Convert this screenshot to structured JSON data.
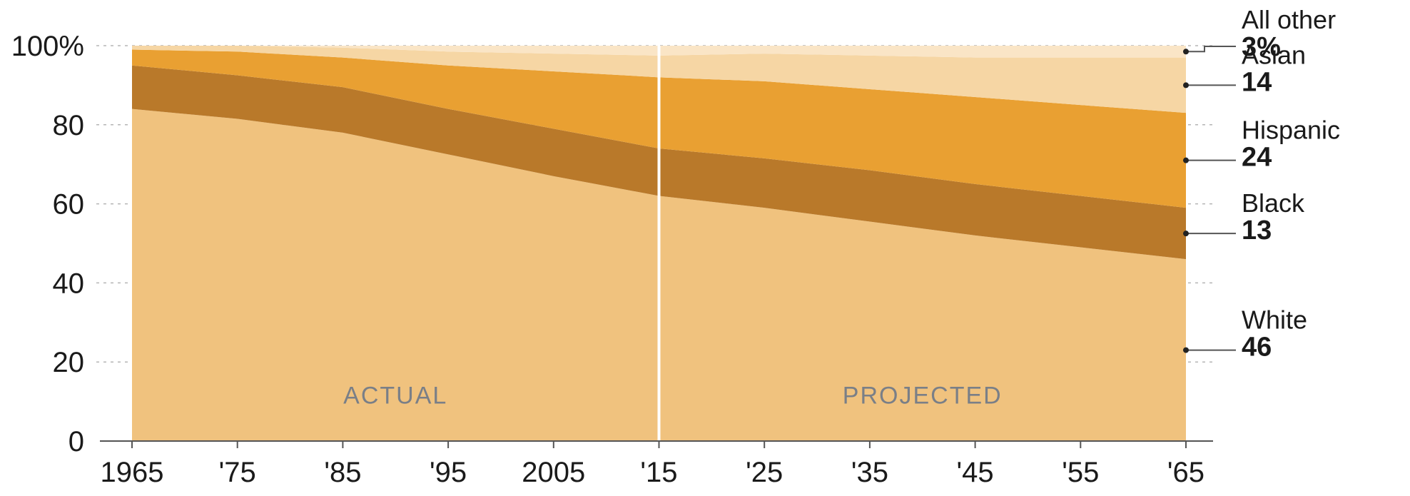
{
  "chart_data": {
    "type": "area",
    "stacked": true,
    "x": [
      1965,
      1975,
      1985,
      1995,
      2005,
      2015,
      2025,
      2035,
      2045,
      2055,
      2065
    ],
    "x_tick_labels": [
      "1965",
      "'75",
      "'85",
      "'95",
      "2005",
      "'15",
      "'25",
      "'35",
      "'45",
      "'55",
      "'65"
    ],
    "y_tick_labels": [
      "0",
      "20",
      "40",
      "60",
      "80",
      "100%"
    ],
    "y_ticks": [
      0,
      20,
      40,
      60,
      80,
      100
    ],
    "ylim": [
      0,
      100
    ],
    "grid": true,
    "divider_x": 2015,
    "period_labels": [
      {
        "text": "ACTUAL",
        "x": 1990
      },
      {
        "text": "PROJECTED",
        "x": 2040
      }
    ],
    "series": [
      {
        "name": "White",
        "color": "#f0c27e",
        "label_value": "46",
        "values": [
          84,
          81.5,
          78,
          72.5,
          67,
          62,
          59,
          55.5,
          52,
          49,
          46
        ]
      },
      {
        "name": "Black",
        "color": "#b9792a",
        "label_value": "13",
        "values": [
          11,
          11,
          11.5,
          11.5,
          12,
          12,
          12.5,
          13,
          13,
          13,
          13
        ]
      },
      {
        "name": "Hispanic",
        "color": "#e9a032",
        "label_value": "24",
        "values": [
          4,
          6,
          7.5,
          11,
          14.5,
          18,
          19.5,
          20.5,
          22,
          23,
          24
        ]
      },
      {
        "name": "Asian",
        "color": "#f6d6a4",
        "label_value": "14",
        "values": [
          1,
          1.5,
          2.5,
          3.5,
          4.5,
          5.5,
          7,
          8.5,
          10,
          12,
          14
        ]
      },
      {
        "name": "All other",
        "color": "#fae5c6",
        "label_value": "3%",
        "values": [
          0,
          0,
          0.5,
          1.5,
          2,
          2.5,
          2,
          2.5,
          3,
          3,
          3
        ]
      }
    ]
  }
}
